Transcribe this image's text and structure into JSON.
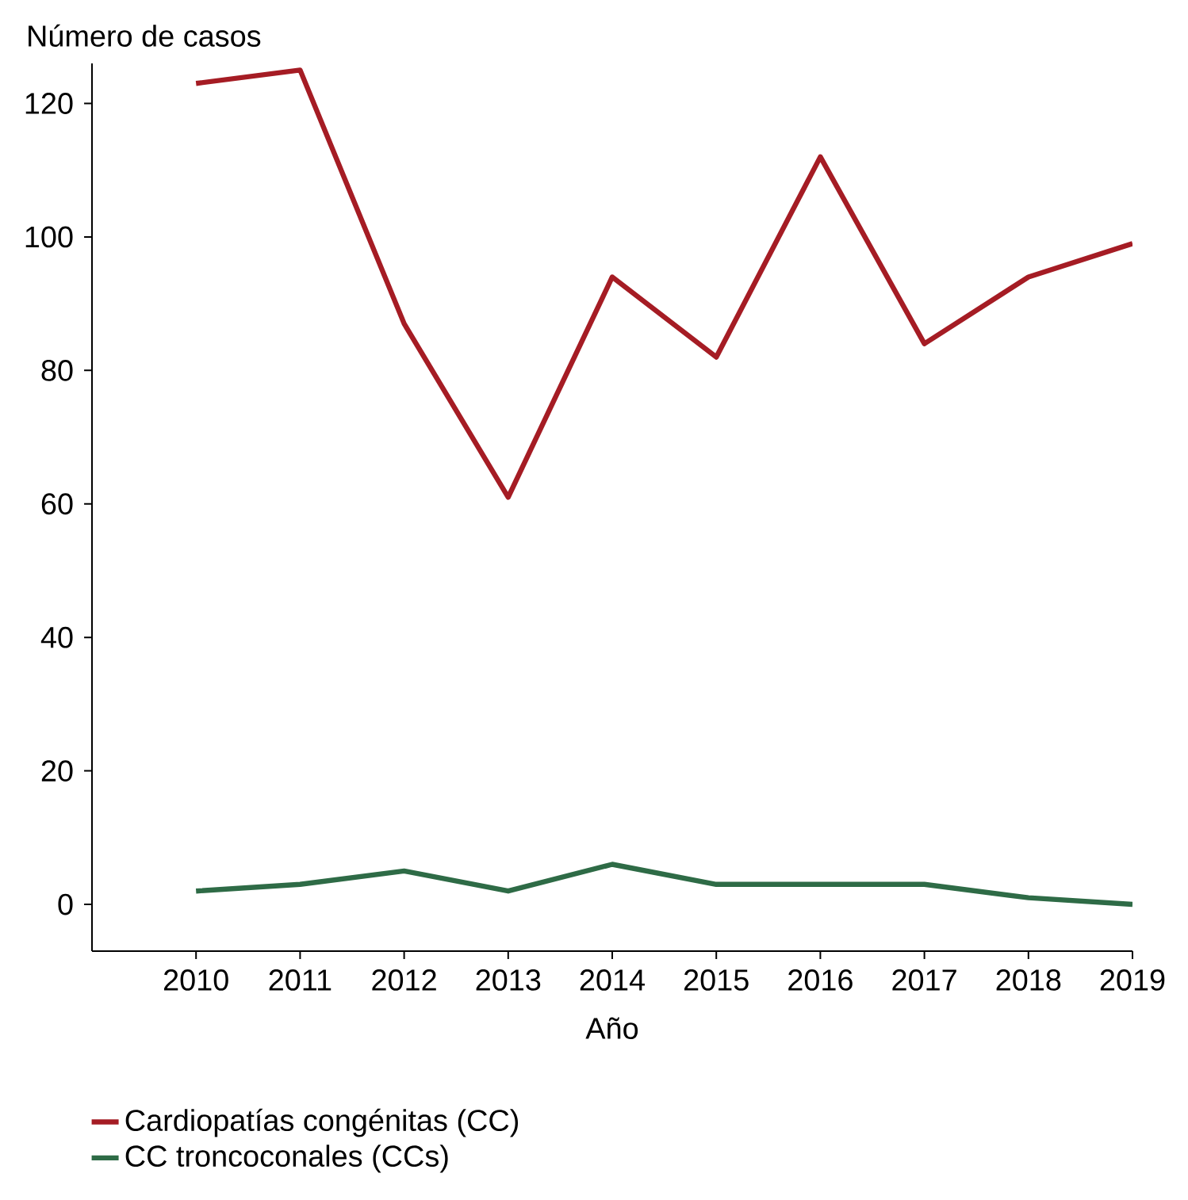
{
  "chart_data": {
    "type": "line",
    "ylabel": "Número de casos",
    "xlabel": "Año",
    "x": [
      2010,
      2011,
      2012,
      2013,
      2014,
      2015,
      2016,
      2017,
      2018,
      2019
    ],
    "series": [
      {
        "name": "Cardiopatías congénitas (CC)",
        "color": "#a51c24",
        "values": [
          123,
          125,
          87,
          61,
          94,
          82,
          112,
          84,
          94,
          99
        ]
      },
      {
        "name": "CC troncoconales (CCs)",
        "color": "#2e6b46",
        "values": [
          2,
          3,
          5,
          2,
          6,
          3,
          3,
          3,
          1,
          0
        ]
      }
    ],
    "xlim": [
      2009,
      2019
    ],
    "xticks": [
      2010,
      2011,
      2012,
      2013,
      2014,
      2015,
      2016,
      2017,
      2018,
      2019
    ],
    "ylim": [
      -7,
      126
    ],
    "yticks": [
      0,
      20,
      40,
      60,
      80,
      100,
      120
    ],
    "grid": false,
    "legend": "bottom left",
    "marker": "none",
    "line_style": "solid"
  }
}
